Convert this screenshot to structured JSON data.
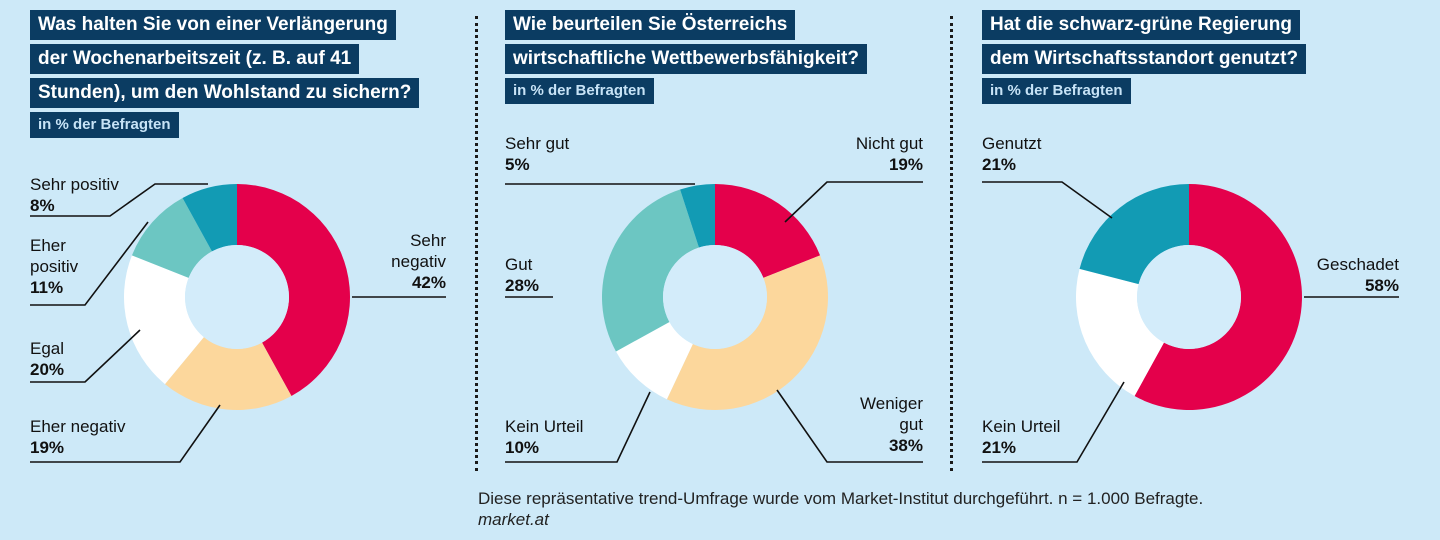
{
  "charts": [
    {
      "title_lines": [
        "Was halten Sie von einer Verlängerung",
        "der Wochenarbeitszeit (z. B. auf 41",
        "Stunden), um den Wohlstand zu sichern?"
      ],
      "subtitle": "in % der Befragten",
      "slices": [
        {
          "label_lines": [
            "Sehr",
            "negativ"
          ],
          "percent": "42%",
          "value": 42,
          "color": "#e4004b"
        },
        {
          "label_lines": [
            "Eher negativ"
          ],
          "percent": "19%",
          "value": 19,
          "color": "#fcd79c"
        },
        {
          "label_lines": [
            "Egal"
          ],
          "percent": "20%",
          "value": 20,
          "color": "#ffffff"
        },
        {
          "label_lines": [
            "Eher",
            "positiv"
          ],
          "percent": "11%",
          "value": 11,
          "color": "#6cc6c2"
        },
        {
          "label_lines": [
            "Sehr positiv"
          ],
          "percent": "8%",
          "value": 8,
          "color": "#129bb4"
        }
      ]
    },
    {
      "title_lines": [
        "Wie beurteilen Sie Österreichs",
        "wirtschaftliche Wettbewerbsfähigkeit?"
      ],
      "subtitle": "in % der Befragten",
      "slices": [
        {
          "label_lines": [
            "Nicht gut"
          ],
          "percent": "19%",
          "value": 19,
          "color": "#e4004b"
        },
        {
          "label_lines": [
            "Weniger",
            "gut"
          ],
          "percent": "38%",
          "value": 38,
          "color": "#fcd79c"
        },
        {
          "label_lines": [
            "Kein Urteil"
          ],
          "percent": "10%",
          "value": 10,
          "color": "#ffffff"
        },
        {
          "label_lines": [
            "Gut"
          ],
          "percent": "28%",
          "value": 28,
          "color": "#6cc6c2"
        },
        {
          "label_lines": [
            "Sehr gut"
          ],
          "percent": "5%",
          "value": 5,
          "color": "#129bb4"
        }
      ]
    },
    {
      "title_lines": [
        "Hat die schwarz-grüne Regierung",
        "dem Wirtschaftsstandort genutzt?"
      ],
      "subtitle": "in % der Befragten",
      "slices": [
        {
          "label_lines": [
            "Geschadet"
          ],
          "percent": "58%",
          "value": 58,
          "color": "#e4004b"
        },
        {
          "label_lines": [
            "Kein Urteil"
          ],
          "percent": "21%",
          "value": 21,
          "color": "#ffffff"
        },
        {
          "label_lines": [
            "Genutzt"
          ],
          "percent": "21%",
          "value": 21,
          "color": "#129bb4"
        }
      ]
    }
  ],
  "chart_data": [
    {
      "type": "pie",
      "title": "Was halten Sie von einer Verlängerung der Wochenarbeitszeit (z. B. auf 41 Stunden), um den Wohlstand zu sichern?",
      "unit": "in % der Befragten",
      "categories": [
        "Sehr negativ",
        "Eher negativ",
        "Egal",
        "Eher positiv",
        "Sehr positiv"
      ],
      "values": [
        42,
        19,
        20,
        11,
        8
      ]
    },
    {
      "type": "pie",
      "title": "Wie beurteilen Sie Österreichs wirtschaftliche Wettbewerbsfähigkeit?",
      "unit": "in % der Befragten",
      "categories": [
        "Nicht gut",
        "Weniger gut",
        "Kein Urteil",
        "Gut",
        "Sehr gut"
      ],
      "values": [
        19,
        38,
        10,
        28,
        5
      ]
    },
    {
      "type": "pie",
      "title": "Hat die schwarz-grüne Regierung dem Wirtschaftsstandort genutzt?",
      "unit": "in % der Befragten",
      "categories": [
        "Geschadet",
        "Kein Urteil",
        "Genutzt"
      ],
      "values": [
        58,
        21,
        21
      ]
    }
  ],
  "footer": {
    "note": "Diese repräsentative trend-Umfrage wurde vom Market-Institut durchgeführt. n = 1.000 Befragte.",
    "source": "market.at"
  }
}
